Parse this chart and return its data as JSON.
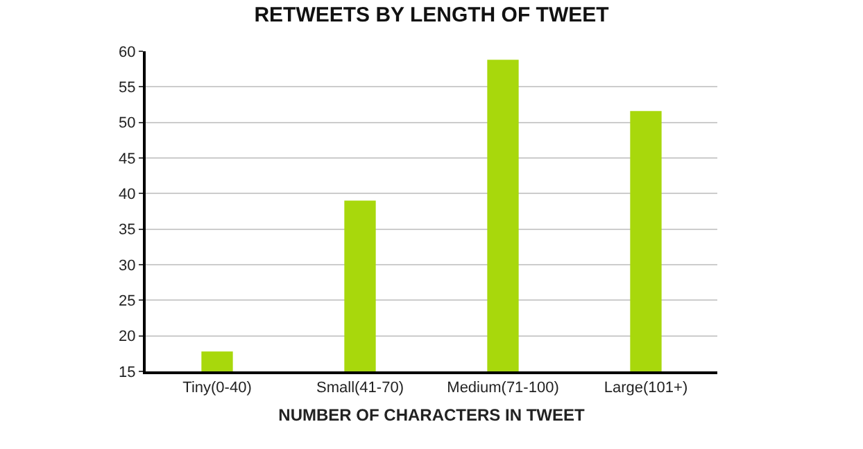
{
  "chart_data": {
    "type": "bar",
    "title": "RETWEETS BY LENGTH OF TWEET",
    "xlabel": "NUMBER OF CHARACTERS IN TWEET",
    "categories": [
      "Tiny(0-40)",
      "Small(41-70)",
      "Medium(71-100)",
      "Large(101+)"
    ],
    "values": [
      17.8,
      39,
      58.8,
      51.6
    ],
    "color": "#a8d80c",
    "ylim": [
      15,
      60
    ],
    "yticks": [
      15,
      20,
      25,
      30,
      35,
      40,
      45,
      50,
      55,
      60
    ],
    "grid": "y",
    "legend": false
  }
}
